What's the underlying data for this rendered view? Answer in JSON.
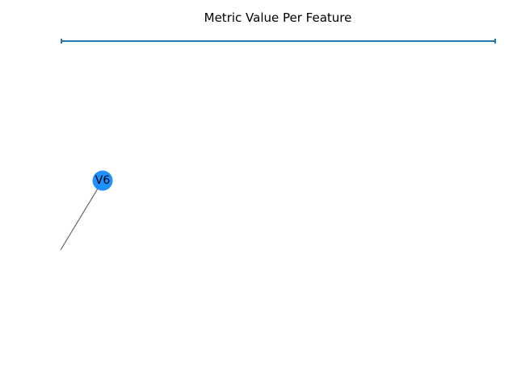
{
  "chart_data": {
    "type": "other",
    "title": "Metric Value Per Feature",
    "series_color": "#1f77b4",
    "node_color": "#1e90ff",
    "edge_color": "#666666",
    "nodes": [
      {
        "label": "V6",
        "x": 0.0,
        "y": 0.0
      }
    ],
    "edges": [
      {
        "source": "V6",
        "target": ""
      }
    ]
  }
}
